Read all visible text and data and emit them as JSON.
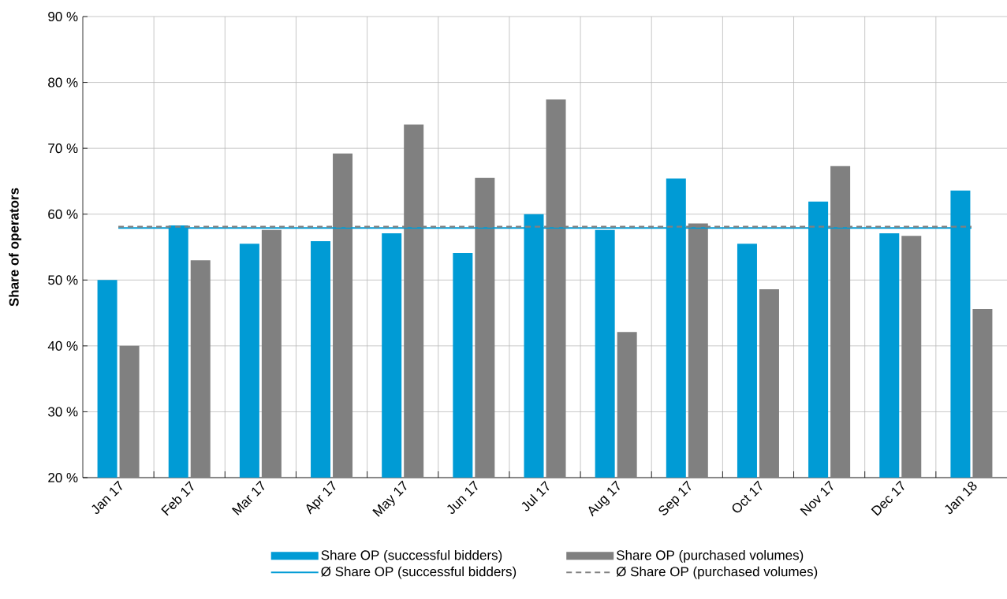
{
  "chart_data": {
    "type": "bar",
    "ylabel": "Share of operators",
    "categories": [
      "Jan 17",
      "Feb 17",
      "Mar 17",
      "Apr 17",
      "May 17",
      "Jun 17",
      "Jul 17",
      "Aug 17",
      "Sep 17",
      "Oct 17",
      "Nov 17",
      "Dec 17",
      "Jan 18"
    ],
    "series": [
      {
        "name": "Share OP (successful bidders)",
        "color": "#009bd5",
        "values": [
          50.0,
          58.3,
          55.5,
          55.9,
          57.1,
          54.1,
          60.0,
          57.6,
          65.4,
          55.5,
          61.9,
          57.1,
          63.6
        ]
      },
      {
        "name": "Share OP (purchased volumes)",
        "color": "#808080",
        "values": [
          40.0,
          53.0,
          57.6,
          69.2,
          73.6,
          65.5,
          77.4,
          42.1,
          58.6,
          48.6,
          67.3,
          56.7,
          45.6
        ]
      }
    ],
    "ref_lines": [
      {
        "axis": "y",
        "value": 57.9,
        "label": "Ø Share OP (successful bidders)",
        "color": "#009bd5",
        "line_style": "solid"
      },
      {
        "axis": "y",
        "value": 58.1,
        "label": "Ø Share OP (purchased volumes)",
        "color": "#808080",
        "line_style": "dashed"
      }
    ],
    "ylim": [
      20,
      90
    ],
    "yticks": [
      {
        "value": 20,
        "label": "20 %"
      },
      {
        "value": 30,
        "label": "30 %"
      },
      {
        "value": 40,
        "label": "40 %"
      },
      {
        "value": 50,
        "label": "50 %"
      },
      {
        "value": 60,
        "label": "60 %"
      },
      {
        "value": 70,
        "label": "70 %"
      },
      {
        "value": 80,
        "label": "80 %"
      },
      {
        "value": 90,
        "label": "90 %"
      }
    ],
    "grid": true,
    "legend": "bottom"
  }
}
